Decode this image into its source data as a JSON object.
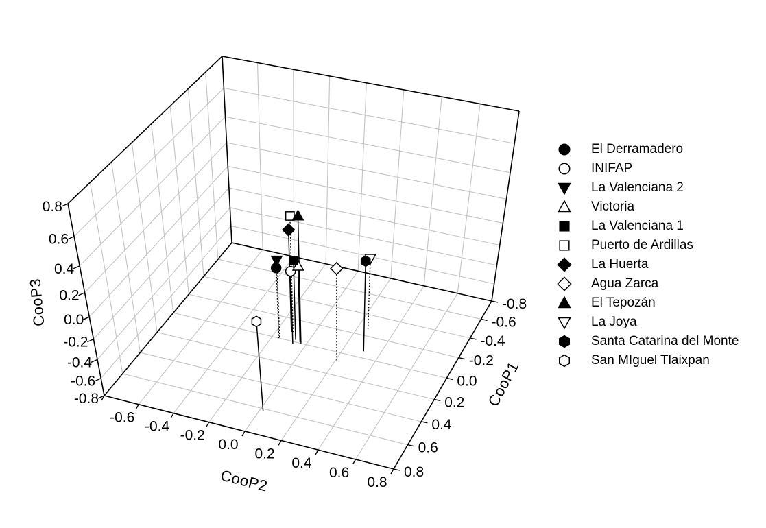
{
  "chart_data": {
    "type": "scatter",
    "subtype": "3d-dropline-scatter",
    "title": "",
    "grid": true,
    "legend_position": "right",
    "axes": {
      "x": {
        "label": "CooP2",
        "range": [
          -0.8,
          0.8
        ],
        "ticks": [
          "-0.8",
          "-0.6",
          "-0.4",
          "-0.2",
          "0.0",
          "0.2",
          "0.4",
          "0.6",
          "0.8"
        ]
      },
      "y": {
        "label": "CooP1",
        "range": [
          -0.8,
          0.8
        ],
        "ticks": [
          "-0.8",
          "-0.6",
          "-0.4",
          "-0.2",
          "0.0",
          "0.2",
          "0.4",
          "0.6",
          "0.8"
        ]
      },
      "z": {
        "label": "CooP3",
        "range": [
          -0.8,
          0.8
        ],
        "ticks": [
          "0.8",
          "0.6",
          "0.4",
          "0.2",
          "0.0",
          "-0.2",
          "-0.4",
          "-0.6",
          "-0.8"
        ]
      }
    },
    "series": [
      {
        "name": "El Derramadero",
        "marker": "circle",
        "filled": true,
        "stem": "dotted",
        "point": {
          "CooP2": -0.16,
          "CooP1": 0.0,
          "CooP3": -0.07
        }
      },
      {
        "name": "INIFAP",
        "marker": "circle",
        "filled": false,
        "stem": "solid",
        "point": {
          "CooP2": -0.07,
          "CooP1": 0.02,
          "CooP3": -0.05
        }
      },
      {
        "name": "La Valenciana 2",
        "marker": "triangle-down",
        "filled": true,
        "stem": "dotted",
        "point": {
          "CooP2": -0.16,
          "CooP1": -0.01,
          "CooP3": -0.01
        }
      },
      {
        "name": "Victoria",
        "marker": "triangle-up",
        "filled": false,
        "stem": "solid",
        "point": {
          "CooP2": -0.04,
          "CooP1": -0.01,
          "CooP3": -0.02
        }
      },
      {
        "name": "La Valenciana 1",
        "marker": "square",
        "filled": true,
        "stem": "solid",
        "point": {
          "CooP2": -0.07,
          "CooP1": -0.02,
          "CooP3": 0.01
        }
      },
      {
        "name": "Puerto de Ardillas",
        "marker": "square",
        "filled": false,
        "stem": "dotted",
        "point": {
          "CooP2": -0.11,
          "CooP1": -0.08,
          "CooP3": 0.31
        }
      },
      {
        "name": "La Huerta",
        "marker": "diamond",
        "filled": true,
        "stem": "solid",
        "point": {
          "CooP2": -0.12,
          "CooP1": -0.08,
          "CooP3": 0.2
        }
      },
      {
        "name": "Agua Zarca",
        "marker": "diamond",
        "filled": false,
        "stem": "dotted",
        "point": {
          "CooP2": 0.21,
          "CooP1": 0.08,
          "CooP3": 0.12
        }
      },
      {
        "name": "El Tepozán",
        "marker": "triangle-up",
        "filled": true,
        "stem": "solid",
        "point": {
          "CooP2": -0.03,
          "CooP1": 0.0,
          "CooP3": 0.39
        }
      },
      {
        "name": "La Joya",
        "marker": "triangle-down",
        "filled": false,
        "stem": "dotted",
        "point": {
          "CooP2": 0.26,
          "CooP1": -0.26,
          "CooP3": -0.06
        }
      },
      {
        "name": "Santa Catarina del Monte",
        "marker": "hexagon",
        "filled": true,
        "stem": "solid",
        "point": {
          "CooP2": 0.31,
          "CooP1": -0.06,
          "CooP3": 0.1
        }
      },
      {
        "name": "San MIguel Tlaixpan",
        "marker": "hexagon",
        "filled": false,
        "stem": "solid",
        "point": {
          "CooP2": 0.02,
          "CooP1": 0.62,
          "CooP3": 0.09
        }
      }
    ]
  },
  "colors": {
    "background": "#ffffff",
    "axis": "#000000",
    "grid": "#c3c3c3",
    "marker": "#000000",
    "marker_open_fill": "#ffffff",
    "stem": "#000000",
    "text": "#000000"
  }
}
